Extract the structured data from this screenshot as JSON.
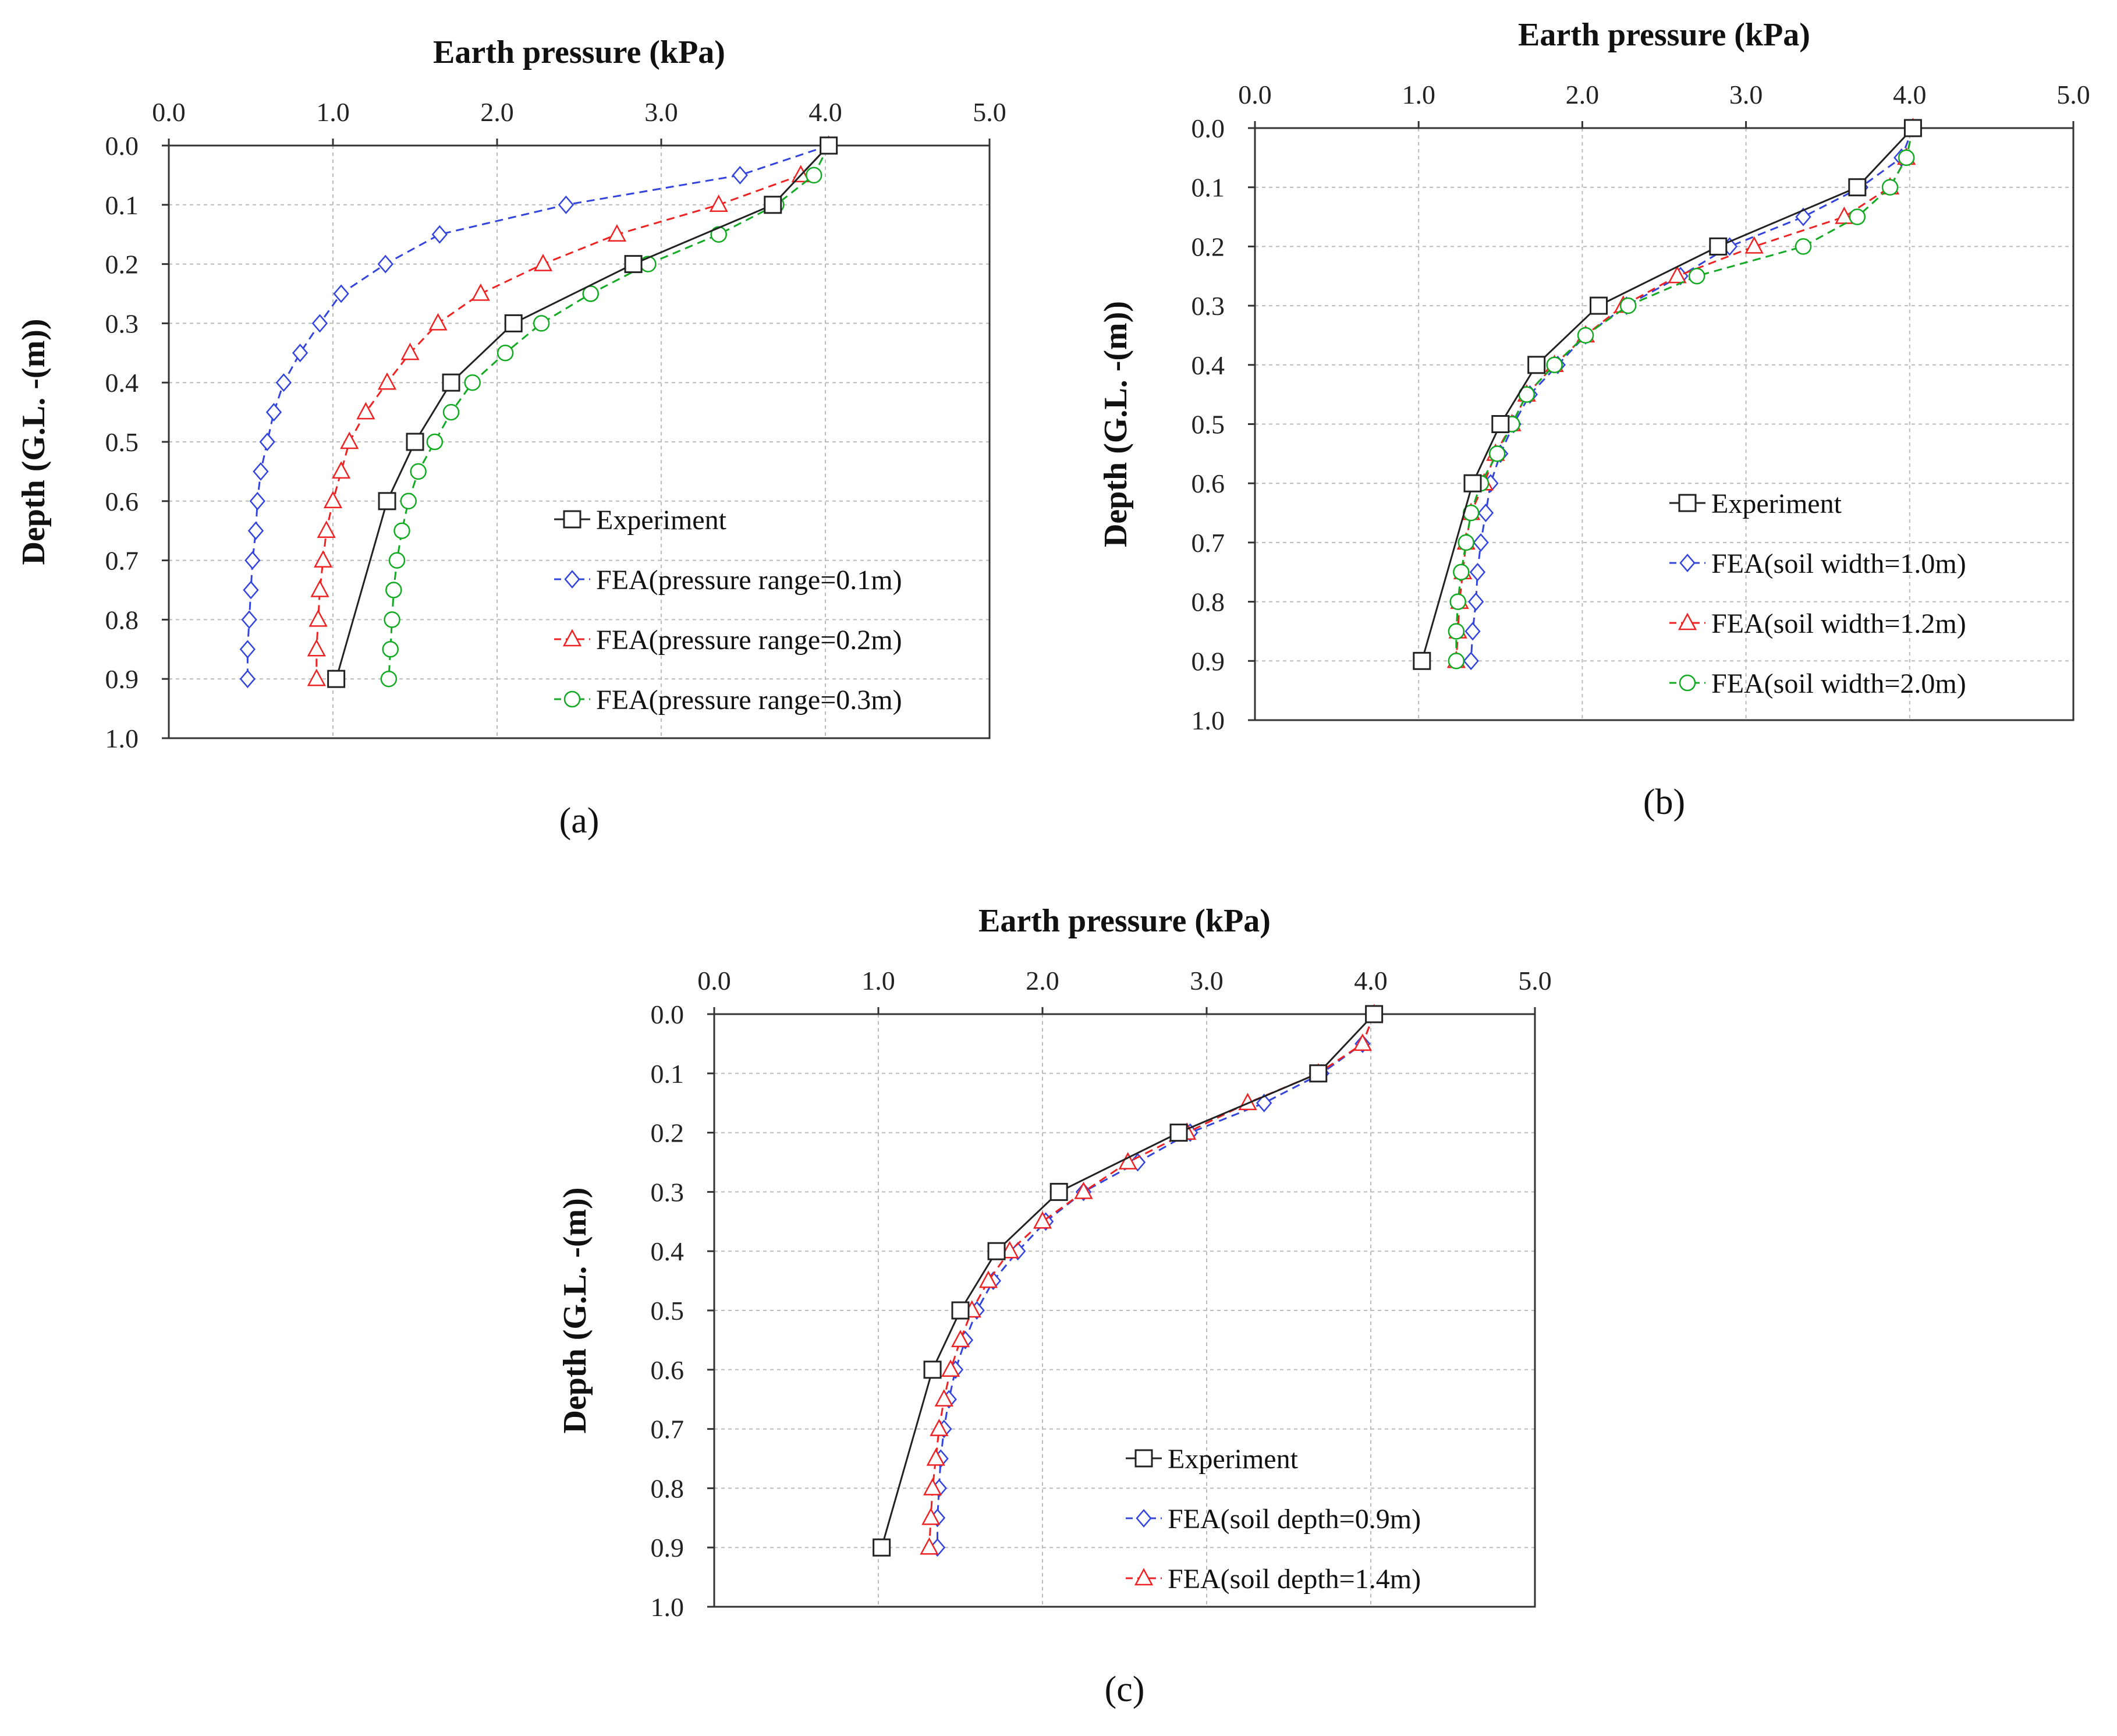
{
  "colors": {
    "experiment": "#222222",
    "blue": "#3344dd",
    "red": "#ee2222",
    "green": "#11aa22",
    "grid": "#bbbbbb",
    "frame": "#333333"
  },
  "chart_data": [
    {
      "type": "line",
      "panel_label": "(a)",
      "title": "Earth pressure (kPa)",
      "xlabel": "Earth pressure (kPa)",
      "ylabel": "Depth (G.L. -(m))",
      "xlim": [
        0.0,
        5.0
      ],
      "ylim": [
        0.0,
        1.0
      ],
      "x_ticks": [
        "0.0",
        "1.0",
        "2.0",
        "3.0",
        "4.0",
        "5.0"
      ],
      "y_ticks": [
        "0.0",
        "0.1",
        "0.2",
        "0.3",
        "0.4",
        "0.5",
        "0.6",
        "0.7",
        "0.8",
        "0.9",
        "1.0"
      ],
      "x_axis_position": "top",
      "y_inverted": true,
      "grid": true,
      "legend_position": "bottom-right",
      "series": [
        {
          "name": "Experiment",
          "marker": "square",
          "dash": "solid",
          "color": "#222222",
          "x": [
            4.02,
            3.68,
            2.83,
            2.1,
            1.72,
            1.5,
            1.33,
            1.02
          ],
          "y": [
            0.0,
            0.1,
            0.2,
            0.3,
            0.4,
            0.5,
            0.6,
            0.9
          ]
        },
        {
          "name": "FEA(pressure range=0.1m)",
          "marker": "diamond",
          "dash": "dashed",
          "color": "#3344dd",
          "x": [
            4.02,
            3.48,
            2.42,
            1.65,
            1.32,
            1.05,
            0.92,
            0.8,
            0.7,
            0.64,
            0.6,
            0.56,
            0.54,
            0.53,
            0.51,
            0.5,
            0.49,
            0.48,
            0.48
          ],
          "y": [
            0.0,
            0.05,
            0.1,
            0.15,
            0.2,
            0.25,
            0.3,
            0.35,
            0.4,
            0.45,
            0.5,
            0.55,
            0.6,
            0.65,
            0.7,
            0.75,
            0.8,
            0.85,
            0.9
          ]
        },
        {
          "name": "FEA(pressure range=0.2m)",
          "marker": "triangle",
          "dash": "dashed",
          "color": "#ee2222",
          "x": [
            4.02,
            3.85,
            3.35,
            2.73,
            2.28,
            1.9,
            1.64,
            1.47,
            1.33,
            1.2,
            1.1,
            1.05,
            1.0,
            0.96,
            0.94,
            0.92,
            0.91,
            0.9,
            0.9
          ],
          "y": [
            0.0,
            0.05,
            0.1,
            0.15,
            0.2,
            0.25,
            0.3,
            0.35,
            0.4,
            0.45,
            0.5,
            0.55,
            0.6,
            0.65,
            0.7,
            0.75,
            0.8,
            0.85,
            0.9
          ]
        },
        {
          "name": "FEA(pressure range=0.3m)",
          "marker": "circle",
          "dash": "dashed",
          "color": "#11aa22",
          "x": [
            4.02,
            3.93,
            3.7,
            3.35,
            2.92,
            2.57,
            2.27,
            2.05,
            1.85,
            1.72,
            1.62,
            1.52,
            1.46,
            1.42,
            1.39,
            1.37,
            1.36,
            1.35,
            1.34
          ],
          "y": [
            0.0,
            0.05,
            0.1,
            0.15,
            0.2,
            0.25,
            0.3,
            0.35,
            0.4,
            0.45,
            0.5,
            0.55,
            0.6,
            0.65,
            0.7,
            0.75,
            0.8,
            0.85,
            0.9
          ]
        }
      ]
    },
    {
      "type": "line",
      "panel_label": "(b)",
      "title": "Earth pressure (kPa)",
      "xlabel": "Earth pressure (kPa)",
      "ylabel": "Depth (G.L. -(m))",
      "xlim": [
        0.0,
        5.0
      ],
      "ylim": [
        0.0,
        1.0
      ],
      "x_ticks": [
        "0.0",
        "1.0",
        "2.0",
        "3.0",
        "4.0",
        "5.0"
      ],
      "y_ticks": [
        "0.0",
        "0.1",
        "0.2",
        "0.3",
        "0.4",
        "0.5",
        "0.6",
        "0.7",
        "0.8",
        "0.9",
        "1.0"
      ],
      "x_axis_position": "top",
      "y_inverted": true,
      "grid": true,
      "legend_position": "bottom-right",
      "series": [
        {
          "name": "Experiment",
          "marker": "square",
          "dash": "solid",
          "color": "#222222",
          "x": [
            4.02,
            3.68,
            2.83,
            2.1,
            1.72,
            1.5,
            1.33,
            1.02
          ],
          "y": [
            0.0,
            0.1,
            0.2,
            0.3,
            0.4,
            0.5,
            0.6,
            0.9
          ]
        },
        {
          "name": "FEA(soil width=1.0m)",
          "marker": "diamond",
          "dash": "dashed",
          "color": "#3344dd",
          "x": [
            4.02,
            3.95,
            3.7,
            3.35,
            2.9,
            2.6,
            2.27,
            2.02,
            1.85,
            1.68,
            1.58,
            1.5,
            1.44,
            1.41,
            1.38,
            1.36,
            1.35,
            1.33,
            1.32
          ],
          "y": [
            0.0,
            0.05,
            0.1,
            0.15,
            0.2,
            0.25,
            0.3,
            0.35,
            0.4,
            0.45,
            0.5,
            0.55,
            0.6,
            0.65,
            0.7,
            0.75,
            0.8,
            0.85,
            0.9
          ]
        },
        {
          "name": "FEA(soil width=1.2m)",
          "marker": "triangle",
          "dash": "dashed",
          "color": "#ee2222",
          "x": [
            4.02,
            3.98,
            3.88,
            3.6,
            3.05,
            2.58,
            2.25,
            2.02,
            1.83,
            1.66,
            1.57,
            1.47,
            1.4,
            1.32,
            1.29,
            1.27,
            1.25,
            1.24,
            1.23
          ],
          "y": [
            0.0,
            0.05,
            0.1,
            0.15,
            0.2,
            0.25,
            0.3,
            0.35,
            0.4,
            0.45,
            0.5,
            0.55,
            0.6,
            0.65,
            0.7,
            0.75,
            0.8,
            0.85,
            0.9
          ]
        },
        {
          "name": "FEA(soil width=2.0m)",
          "marker": "circle",
          "dash": "dashed",
          "color": "#11aa22",
          "x": [
            4.02,
            3.98,
            3.88,
            3.68,
            3.35,
            2.7,
            2.28,
            2.02,
            1.83,
            1.66,
            1.57,
            1.48,
            1.38,
            1.32,
            1.29,
            1.26,
            1.24,
            1.23,
            1.23
          ],
          "y": [
            0.0,
            0.05,
            0.1,
            0.15,
            0.2,
            0.25,
            0.3,
            0.35,
            0.4,
            0.45,
            0.5,
            0.55,
            0.6,
            0.65,
            0.7,
            0.75,
            0.8,
            0.85,
            0.9
          ]
        }
      ]
    },
    {
      "type": "line",
      "panel_label": "(c)",
      "title": "Earth pressure (kPa)",
      "xlabel": "Earth pressure (kPa)",
      "ylabel": "Depth (G.L. -(m))",
      "xlim": [
        0.0,
        5.0
      ],
      "ylim": [
        0.0,
        1.0
      ],
      "x_ticks": [
        "0.0",
        "1.0",
        "2.0",
        "3.0",
        "4.0",
        "5.0"
      ],
      "y_ticks": [
        "0.0",
        "0.1",
        "0.2",
        "0.3",
        "0.4",
        "0.5",
        "0.6",
        "0.7",
        "0.8",
        "0.9",
        "1.0"
      ],
      "x_axis_position": "top",
      "y_inverted": true,
      "grid": true,
      "legend_position": "bottom-right",
      "series": [
        {
          "name": "Experiment",
          "marker": "square",
          "dash": "solid",
          "color": "#222222",
          "x": [
            4.02,
            3.68,
            2.83,
            2.1,
            1.72,
            1.5,
            1.33,
            1.02
          ],
          "y": [
            0.0,
            0.1,
            0.2,
            0.3,
            0.4,
            0.5,
            0.6,
            0.9
          ]
        },
        {
          "name": "FEA(soil depth=0.9m)",
          "marker": "diamond",
          "dash": "dashed",
          "color": "#3344dd",
          "x": [
            4.02,
            3.95,
            3.7,
            3.35,
            2.9,
            2.58,
            2.25,
            2.02,
            1.85,
            1.7,
            1.6,
            1.53,
            1.47,
            1.43,
            1.4,
            1.38,
            1.37,
            1.36,
            1.36
          ],
          "y": [
            0.0,
            0.05,
            0.1,
            0.15,
            0.2,
            0.25,
            0.3,
            0.35,
            0.4,
            0.45,
            0.5,
            0.55,
            0.6,
            0.65,
            0.7,
            0.75,
            0.8,
            0.85,
            0.9
          ]
        },
        {
          "name": "FEA(soil depth=1.4m)",
          "marker": "triangle",
          "dash": "dashed",
          "color": "#ee2222",
          "x": [
            4.02,
            3.95,
            3.68,
            3.25,
            2.88,
            2.52,
            2.25,
            2.0,
            1.8,
            1.67,
            1.57,
            1.5,
            1.44,
            1.4,
            1.37,
            1.35,
            1.33,
            1.32,
            1.31
          ],
          "y": [
            0.0,
            0.05,
            0.1,
            0.15,
            0.2,
            0.25,
            0.3,
            0.35,
            0.4,
            0.45,
            0.5,
            0.55,
            0.6,
            0.65,
            0.7,
            0.75,
            0.8,
            0.85,
            0.9
          ]
        }
      ]
    }
  ]
}
